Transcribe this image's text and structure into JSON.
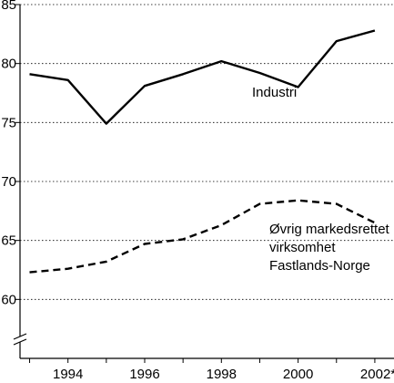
{
  "chart_data": {
    "type": "line",
    "title": "",
    "xlabel": "",
    "ylabel": "",
    "x": [
      1993,
      1994,
      1995,
      1996,
      1997,
      1998,
      1999,
      2000,
      2001,
      2002
    ],
    "xlim": [
      1992.75,
      2002.5
    ],
    "ylim": [
      55,
      85
    ],
    "axis_break": true,
    "grid": "horizontal dotted",
    "x_ticks": [
      {
        "value": 1994,
        "label": "1994"
      },
      {
        "value": 1996,
        "label": "1996"
      },
      {
        "value": 1998,
        "label": "1998"
      },
      {
        "value": 2000,
        "label": "2000"
      },
      {
        "value": 2002,
        "label": "2002*"
      }
    ],
    "y_ticks": [
      {
        "value": 60,
        "label": "60"
      },
      {
        "value": 65,
        "label": "65"
      },
      {
        "value": 70,
        "label": "70"
      },
      {
        "value": 75,
        "label": "75"
      },
      {
        "value": 80,
        "label": "80"
      },
      {
        "value": 85,
        "label": "85"
      }
    ],
    "series": [
      {
        "style": "solid",
        "color": "#000000",
        "values": [
          79.1,
          78.6,
          74.9,
          78.1,
          79.1,
          80.2,
          79.2,
          78.0,
          81.9,
          82.8
        ],
        "label_lines": [
          "Industri"
        ],
        "label_at": {
          "x": 1998.8,
          "y": 77.2
        }
      },
      {
        "style": "dashed",
        "color": "#000000",
        "values": [
          62.3,
          62.6,
          63.2,
          64.7,
          65.1,
          66.3,
          68.1,
          68.4,
          68.1,
          66.5
        ],
        "label_lines": [
          "Øvrig markedsrettet",
          "virksomhet",
          "Fastlands-Norge"
        ],
        "label_at": {
          "x": 1999.25,
          "y": 65.6
        }
      }
    ]
  }
}
